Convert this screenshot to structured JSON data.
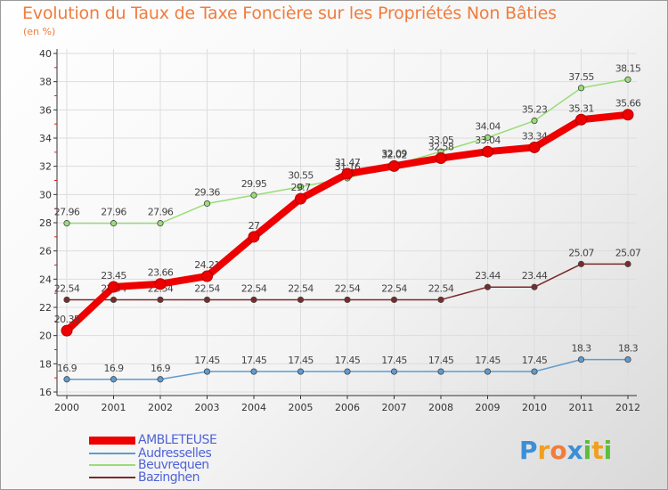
{
  "chart_data": {
    "type": "line",
    "title": "Evolution du Taux de Taxe Foncière sur les Propriétés Non Bâties",
    "unit_label": "(en %)",
    "xlabel": "",
    "ylabel": "",
    "categories": [
      "2000",
      "2001",
      "2002",
      "2003",
      "2004",
      "2005",
      "2006",
      "2007",
      "2008",
      "2009",
      "2010",
      "2011",
      "2012"
    ],
    "ylim": [
      16,
      40
    ],
    "yticks": [
      "16",
      "18",
      "20",
      "22",
      "24",
      "26",
      "28",
      "30",
      "32",
      "34",
      "36",
      "38",
      "40"
    ],
    "series": [
      {
        "name": "AMBLETEUSE",
        "color": "#ee0000",
        "values": [
          20.35,
          23.45,
          23.66,
          24.21,
          27,
          29.7,
          31.47,
          32.02,
          32.58,
          33.04,
          33.34,
          35.31,
          35.66
        ],
        "labels": [
          "20.35",
          "23.45",
          "23.66",
          "24.21",
          "27",
          "29.7",
          "31.47",
          "32.02",
          "32.58",
          "33.04",
          "33.34",
          "35.31",
          "35.66"
        ]
      },
      {
        "name": "Audresselles",
        "color": "#5e9bd0",
        "values": [
          16.9,
          16.9,
          16.9,
          17.45,
          17.45,
          17.45,
          17.45,
          17.45,
          17.45,
          17.45,
          17.45,
          18.3,
          18.3
        ],
        "labels": [
          "16.9",
          "16.9",
          "16.9",
          "17.45",
          "17.45",
          "17.45",
          "17.45",
          "17.45",
          "17.45",
          "17.45",
          "17.45",
          "18.3",
          "18.3"
        ]
      },
      {
        "name": "Beuvrequen",
        "color": "#99dd77",
        "values": [
          27.96,
          27.96,
          27.96,
          29.36,
          29.95,
          30.55,
          31.16,
          32.09,
          33.05,
          34.04,
          35.23,
          37.55,
          38.15
        ],
        "labels": [
          "27.96",
          "27.96",
          "27.96",
          "29.36",
          "29.95",
          "30.55",
          "31.16",
          "32.09",
          "33.05",
          "34.04",
          "35.23",
          "37.55",
          "38.15"
        ]
      },
      {
        "name": "Bazinghen",
        "color": "#7b2a2a",
        "values": [
          22.54,
          22.54,
          22.54,
          22.54,
          22.54,
          22.54,
          22.54,
          22.54,
          22.54,
          23.44,
          23.44,
          25.07,
          25.07
        ],
        "labels": [
          "22.54",
          "22.54",
          "22.54",
          "22.54",
          "22.54",
          "22.54",
          "22.54",
          "22.54",
          "22.54",
          "23.44",
          "23.44",
          "25.07",
          "25.07"
        ]
      }
    ],
    "legend": [
      "AMBLETEUSE",
      "Audresselles",
      "Beuvrequen",
      "Bazinghen"
    ],
    "legend_position": "bottom-left",
    "grid": true
  },
  "logo": {
    "text": "Proxiti",
    "letter_colors": [
      "#3a8fd8",
      "#f0a020",
      "#f07c3e",
      "#3a8fd8",
      "#5bbf3a",
      "#f0a020",
      "#5bbf3a"
    ]
  }
}
